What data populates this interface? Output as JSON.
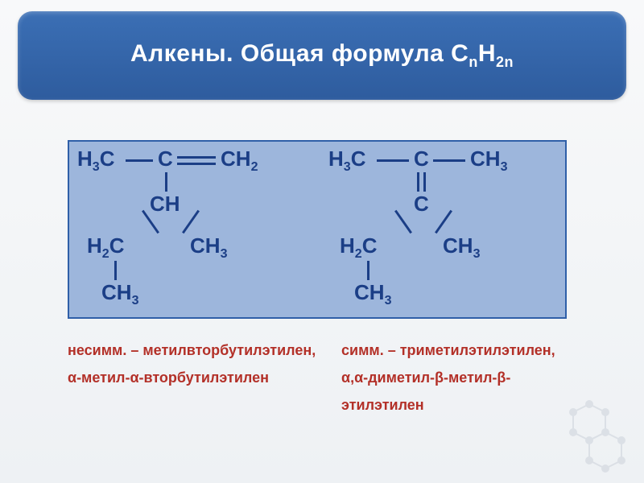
{
  "header": {
    "title_html": "Алкены. Общая формула С<sub>n</sub>H<sub>2n</sub>"
  },
  "panel": {
    "bg_color": "#9db6dc",
    "border_color": "#2f5fa8"
  },
  "left_structure": {
    "frags": {
      "h3c": "H<sub>3</sub>C",
      "c": "C",
      "ch2": "CH<sub>2</sub>",
      "ch": "CH",
      "h2c": "H<sub>2</sub>C",
      "ch3a": "CH<sub>3</sub>",
      "ch3b": "CH<sub>3</sub>"
    }
  },
  "right_structure": {
    "frags": {
      "h3c": "H<sub>3</sub>C",
      "c1": "C",
      "ch3": "CH<sub>3</sub>",
      "c2": "C",
      "h2c": "H<sub>2</sub>C",
      "ch3a": "CH<sub>3</sub>",
      "ch3b": "CH<sub>3</sub>"
    }
  },
  "captions": {
    "left": "несимм. – метилвторбутилэтилен,<br>&alpha;-метил-&alpha;-вторбутилэтилен",
    "right": "симм. – триметилэтилэтилен,<br>&alpha;,&alpha;-диметил-&beta;-метил-&beta;-<br>этилэтилен"
  },
  "colors": {
    "header_grad_top": "#3b6fb5",
    "header_grad_bot": "#2e5c9e",
    "formula_text": "#1b3e86",
    "caption_text": "#b33028",
    "bond": "#1b3e86"
  }
}
